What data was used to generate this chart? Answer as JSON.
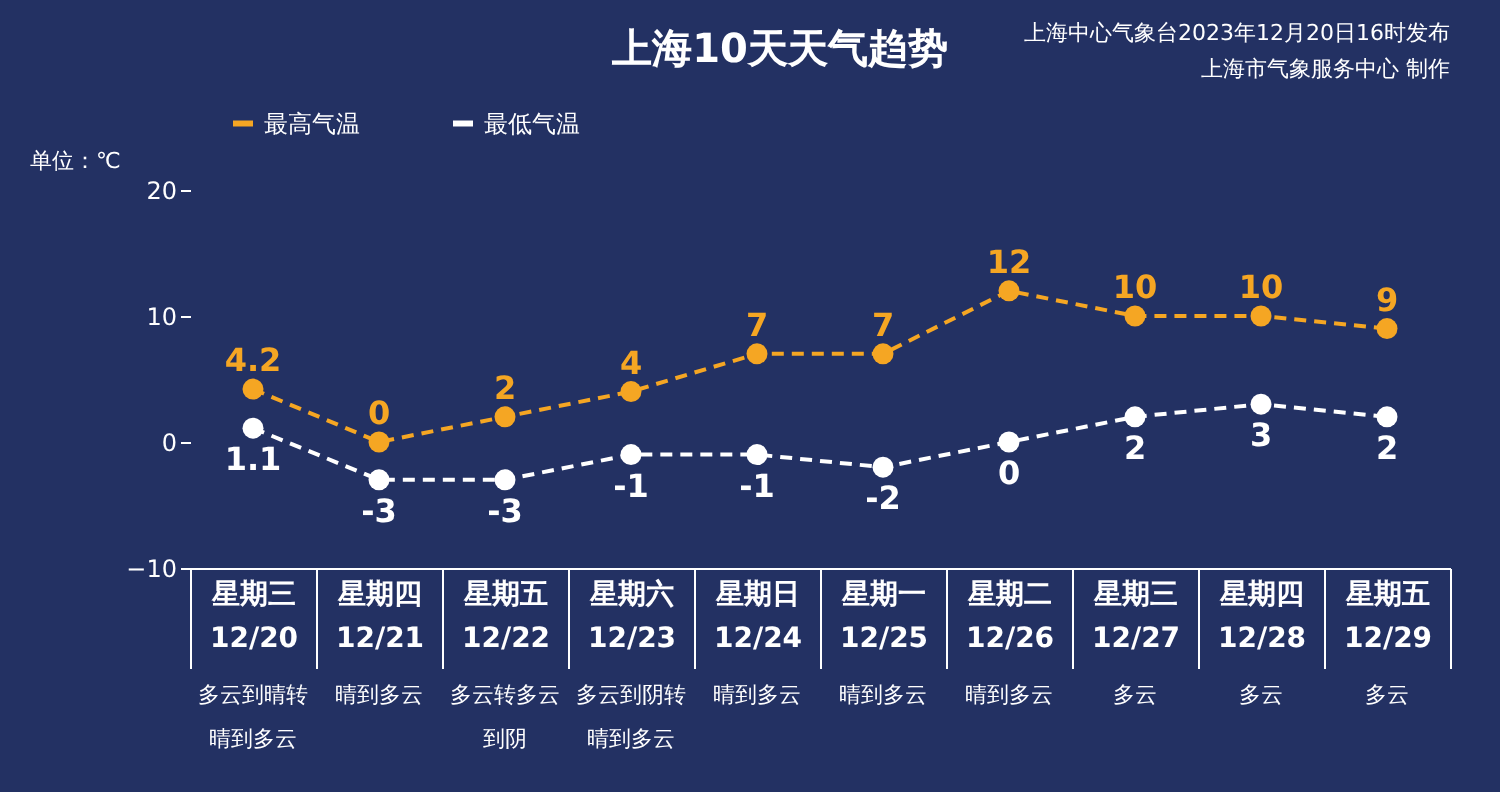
{
  "chart_data": {
    "type": "line",
    "title": "上海10天天气趋势",
    "ylabel": "单位：℃",
    "categories": [
      "星期三 12/20",
      "星期四 12/21",
      "星期五 12/22",
      "星期六 12/23",
      "星期日 12/24",
      "星期一 12/25",
      "星期二 12/26",
      "星期三 12/27",
      "星期四 12/28",
      "星期五 12/29"
    ],
    "series": [
      {
        "name": "最高气温",
        "color": "#f5a623",
        "values": [
          4.2,
          0,
          2,
          4,
          7,
          7,
          12,
          10,
          10,
          9
        ]
      },
      {
        "name": "最低气温",
        "color": "#ffffff",
        "values": [
          1.1,
          -3,
          -3,
          -1,
          -1,
          -2,
          0,
          2,
          3,
          2
        ]
      }
    ],
    "ylim": [
      -10,
      20
    ],
    "yticks": [
      -10,
      0,
      10,
      20
    ],
    "grid": false,
    "legend": "top left",
    "marker": "circle",
    "line_style": "dashed",
    "data_labels": true,
    "annotations": [
      "多云到晴转晴到多云",
      "晴到多云",
      "多云转多云到阴",
      "多云到阴转晴到多云",
      "晴到多云",
      "晴到多云",
      "晴到多云",
      "多云",
      "多云",
      "多云",
      "上海中心气象台2023年12月20日16时发布",
      "上海市气象服务中心 制作"
    ]
  }
}
